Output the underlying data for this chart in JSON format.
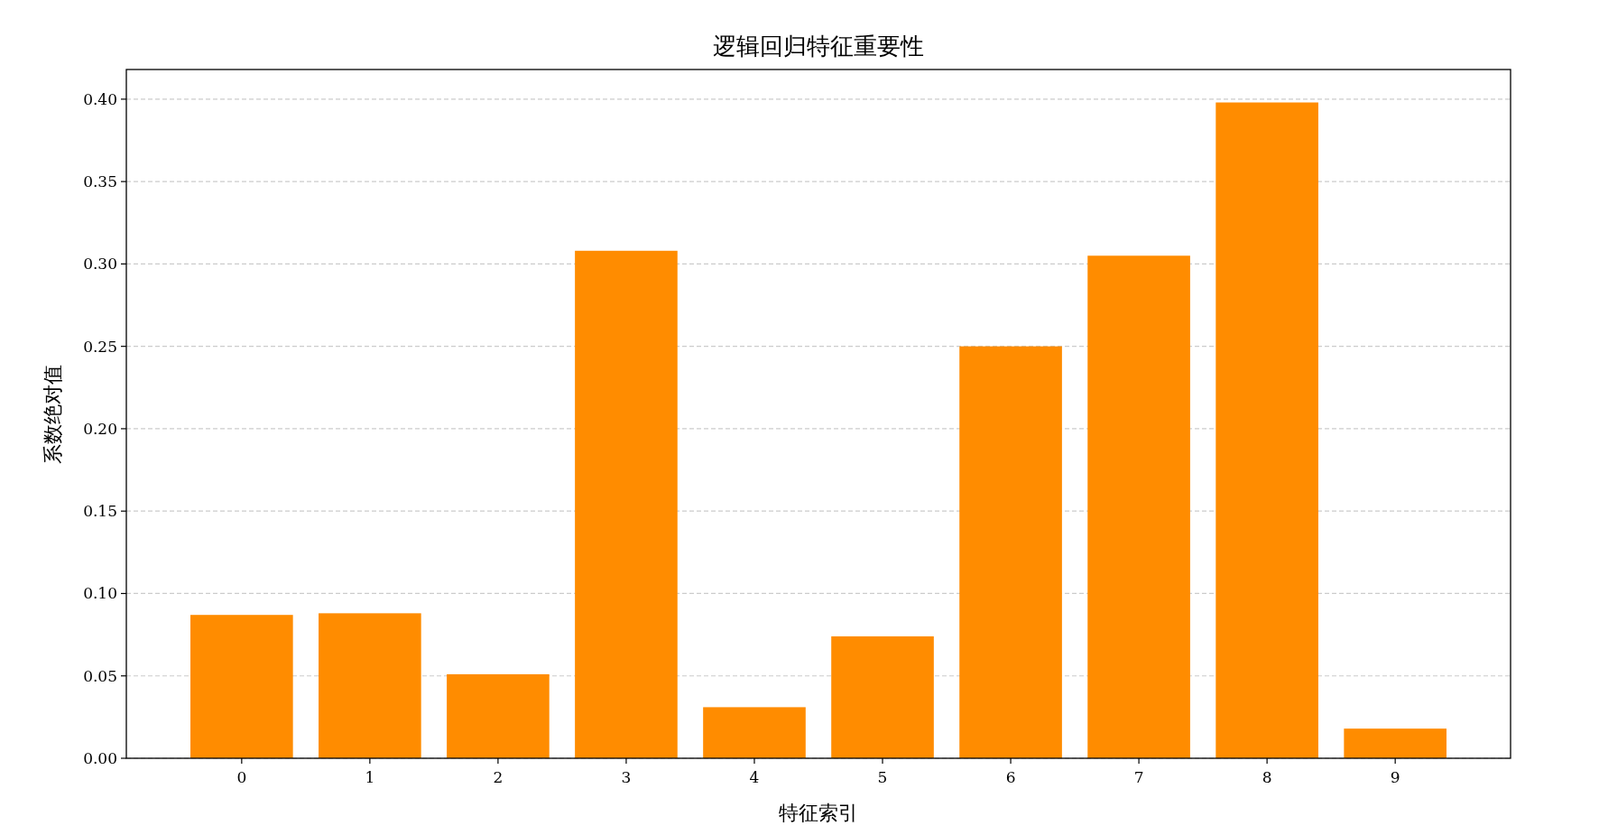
{
  "chart_data": {
    "type": "bar",
    "title": "逻辑回归特征重要性",
    "xlabel": "特征索引",
    "ylabel": "系数绝对值",
    "categories": [
      "0",
      "1",
      "2",
      "3",
      "4",
      "5",
      "6",
      "7",
      "8",
      "9"
    ],
    "values": [
      0.087,
      0.088,
      0.051,
      0.308,
      0.031,
      0.074,
      0.25,
      0.305,
      0.398,
      0.018
    ],
    "color": "#ff8c00",
    "ylim": [
      0,
      0.418
    ],
    "yticks": [
      {
        "value": 0,
        "label": "0.00"
      },
      {
        "value": 0.05,
        "label": "0.05"
      },
      {
        "value": 0.1,
        "label": "0.10"
      },
      {
        "value": 0.15,
        "label": "0.15"
      },
      {
        "value": 0.2,
        "label": "0.20"
      },
      {
        "value": 0.25,
        "label": "0.25"
      },
      {
        "value": 0.3,
        "label": "0.30"
      },
      {
        "value": 0.35,
        "label": "0.35"
      },
      {
        "value": 0.4,
        "label": "0.40"
      }
    ],
    "grid": "y"
  }
}
